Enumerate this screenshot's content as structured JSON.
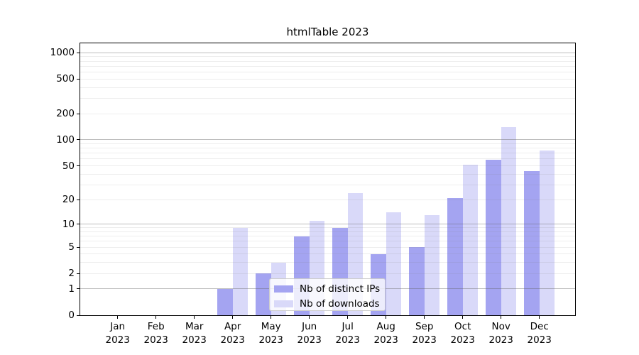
{
  "title": "htmlTable 2023",
  "legend": {
    "items": [
      {
        "label": "Nb of distinct IPs",
        "series": "ips"
      },
      {
        "label": "Nb of downloads",
        "series": "downloads"
      }
    ]
  },
  "colors": {
    "ips": "#a4a4f1",
    "downloads": "#d9d9f9",
    "grid_major": "rgba(100,100,100,0.42)",
    "grid_minor": "rgba(130,130,130,0.14)",
    "spine": "#000000",
    "tick": "#000000",
    "text": "#000000",
    "legend_border": "#cccccc",
    "legend_bg": "rgba(255,255,255,0.8)",
    "background": "#ffffff"
  },
  "chart_data": {
    "type": "bar",
    "title": "htmlTable 2023",
    "categories": [
      "Jan",
      "Feb",
      "Mar",
      "Apr",
      "May",
      "Jun",
      "Jul",
      "Aug",
      "Sep",
      "Oct",
      "Nov",
      "Dec"
    ],
    "year_label": "2023",
    "series": [
      {
        "name": "Nb of distinct IPs",
        "color_key": "ips",
        "values": [
          0,
          0,
          0,
          1,
          2,
          7,
          9,
          4,
          5,
          21,
          59,
          43
        ]
      },
      {
        "name": "Nb of downloads",
        "color_key": "downloads",
        "values": [
          0,
          0,
          0,
          9,
          3,
          11,
          24,
          14,
          13,
          52,
          140,
          75
        ]
      }
    ],
    "yscale": "log1p",
    "ylim": [
      0,
      1280
    ],
    "y_ticks": [
      0,
      1,
      2,
      5,
      10,
      20,
      50,
      100,
      200,
      500,
      1000
    ],
    "grid_major_values": [
      1,
      10,
      100,
      1000
    ],
    "grid_minor_values": [
      2,
      3,
      4,
      5,
      6,
      7,
      8,
      9,
      20,
      30,
      40,
      50,
      60,
      70,
      80,
      90,
      200,
      300,
      400,
      500,
      600,
      700,
      800,
      900
    ],
    "grid": true,
    "legend_position": "lower center",
    "xlabel": "",
    "ylabel": ""
  }
}
